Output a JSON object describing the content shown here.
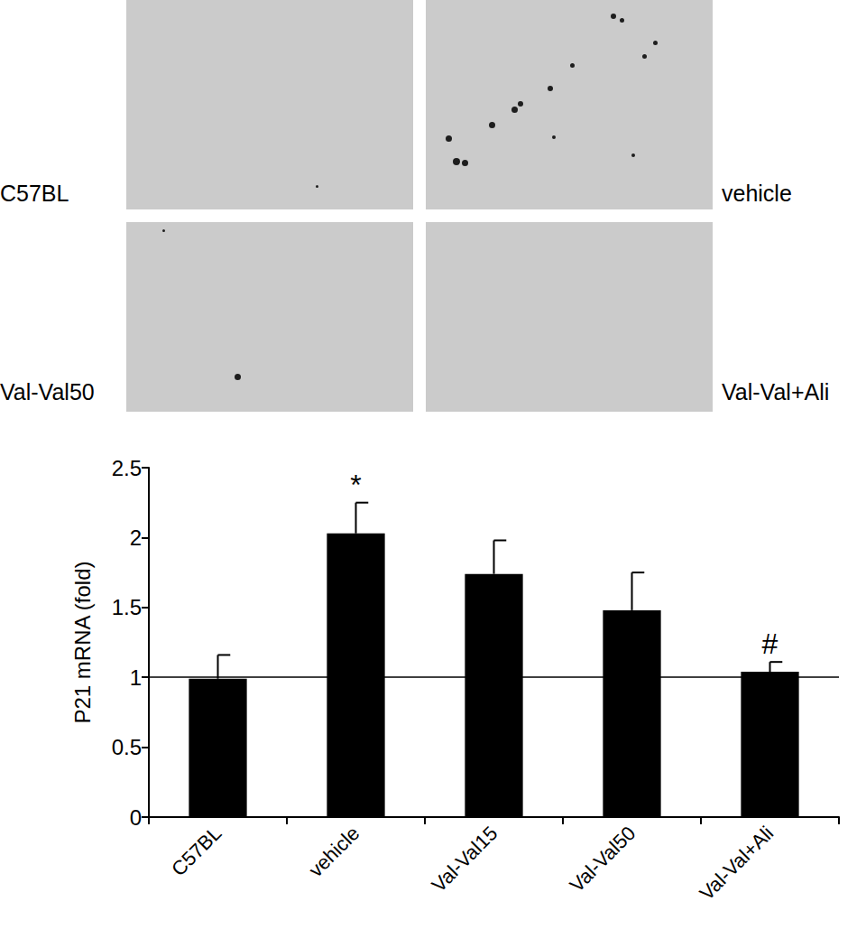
{
  "panels": [
    {
      "label": "C57BL"
    },
    {
      "label": "vehicle"
    },
    {
      "label": "Val-Val50"
    },
    {
      "label": "Val-Val+Ali"
    }
  ],
  "chart_data": {
    "type": "bar",
    "categories": [
      "C57BL",
      "vehicle",
      "Val-Val15",
      "Val-Val50",
      "Val-Val+Ali"
    ],
    "values": [
      0.99,
      2.03,
      1.74,
      1.48,
      1.04
    ],
    "errors": [
      0.17,
      0.22,
      0.24,
      0.27,
      0.07
    ],
    "color": "#000000",
    "ylabel": "P21 mRNA (fold)",
    "ylim": [
      0,
      2.5
    ],
    "yticks": [
      0,
      0.5,
      1,
      1.5,
      2,
      2.5
    ],
    "reference_line": 1,
    "annotations": [
      {
        "category": "vehicle",
        "text": "*"
      },
      {
        "category": "Val-Val+Ali",
        "text": "#"
      }
    ],
    "grid": false
  }
}
